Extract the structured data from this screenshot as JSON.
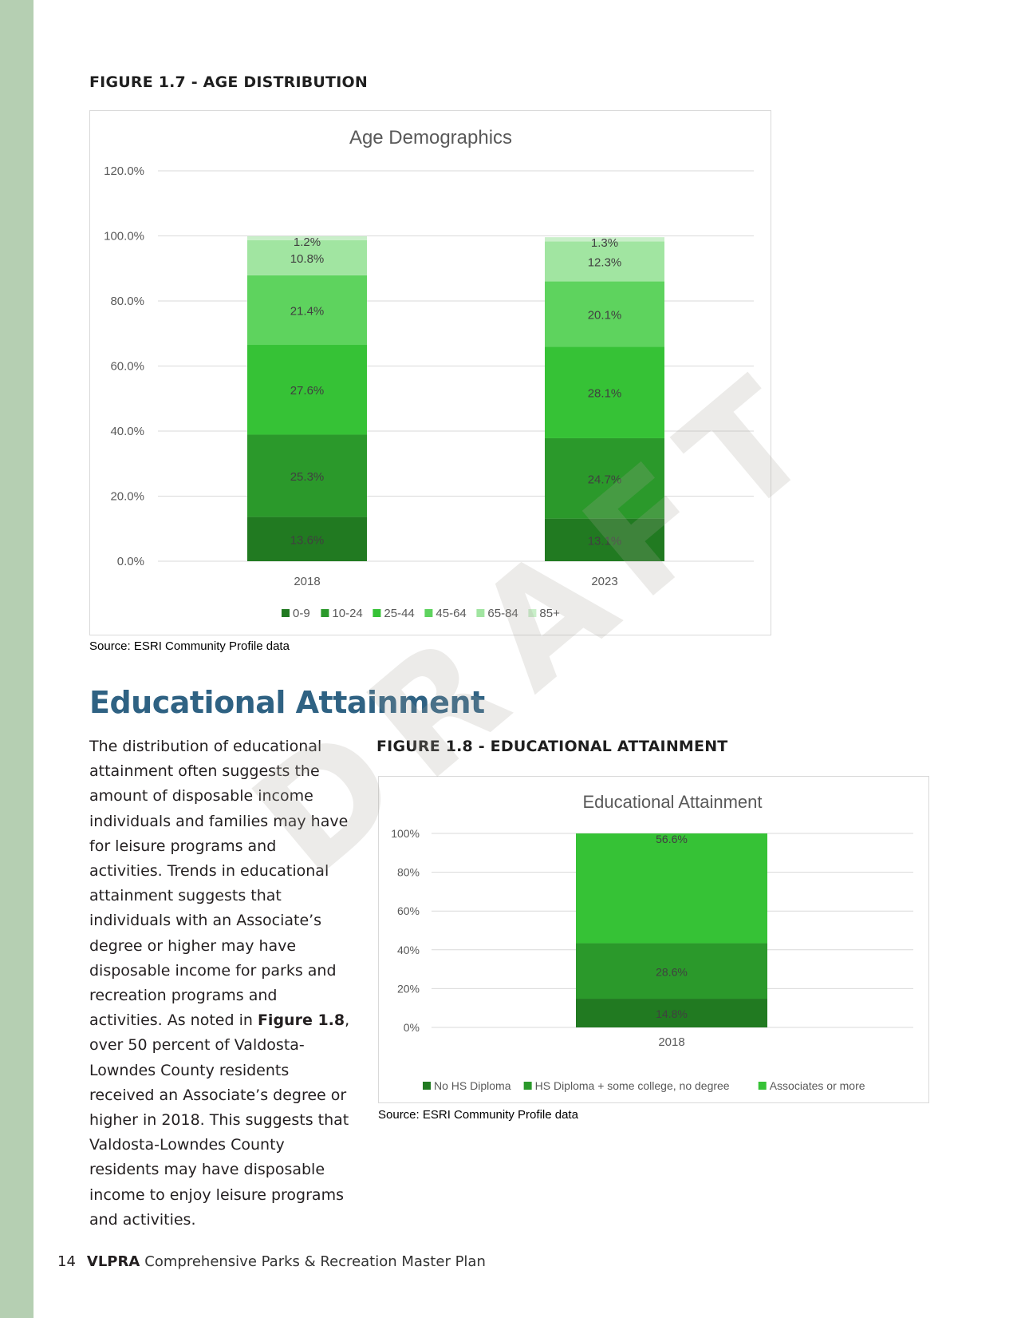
{
  "figure_1": {
    "heading": "FIGURE 1.7 - AGE DISTRIBUTION",
    "source": "Source: ESRI Community Profile data"
  },
  "section": {
    "title": "Educational Attainment",
    "body_pre": "The distribution of educational attainment often suggests the amount of disposable income individuals and families may have for leisure programs and activities. Trends in educational attainment suggests that individuals with an Associate’s degree or higher may have disposable income for parks and recreation programs and activities. As noted in ",
    "body_bold": "Figure 1.8",
    "body_post": ", over 50 percent of Valdosta-Lowndes County residents received an Associate’s degree or higher in 2018. This suggests that Valdosta-Lowndes County residents may have disposable income to enjoy leisure programs and activities."
  },
  "figure_2": {
    "heading": "FIGURE 1.8 - EDUCATIONAL ATTAINMENT",
    "source": "Source: ESRI Community Profile data"
  },
  "watermark": "DRAFT",
  "footer": {
    "page_number": "14",
    "org": "VLPRA",
    "doc_title": "Comprehensive Parks & Recreation Master Plan"
  },
  "chart_data": [
    {
      "type": "bar",
      "stacked": true,
      "title": "Age Demographics",
      "categories": [
        "2018",
        "2023"
      ],
      "series": [
        {
          "name": "0-9",
          "values": [
            13.6,
            13.1
          ],
          "labels": [
            "13.6%",
            "13.1%"
          ],
          "color": "#217a21"
        },
        {
          "name": "10-24",
          "values": [
            25.3,
            24.7
          ],
          "labels": [
            "25.3%",
            "24.7%"
          ],
          "color": "#2b992b"
        },
        {
          "name": "25-44",
          "values": [
            27.6,
            28.1
          ],
          "labels": [
            "27.6%",
            "28.1%"
          ],
          "color": "#36c236"
        },
        {
          "name": "45-64",
          "values": [
            21.4,
            20.1
          ],
          "labels": [
            "21.4%",
            "20.1%"
          ],
          "color": "#5ed35e"
        },
        {
          "name": "65-84",
          "values": [
            10.8,
            12.3
          ],
          "labels": [
            "10.8%",
            "12.3%"
          ],
          "color": "#a1e5a1"
        },
        {
          "name": "85+",
          "values": [
            1.2,
            1.3
          ],
          "labels": [
            "1.2%",
            "1.3%"
          ],
          "color": "#c9efc9"
        }
      ],
      "ylim": [
        0,
        120
      ],
      "yticks": [
        "0.0%",
        "20.0%",
        "40.0%",
        "60.0%",
        "80.0%",
        "100.0%",
        "120.0%"
      ],
      "grid": true,
      "legend": "bottom"
    },
    {
      "type": "bar",
      "stacked": true,
      "title": "Educational Attainment",
      "categories": [
        "2018"
      ],
      "series": [
        {
          "name": "No HS Diploma",
          "values": [
            14.8
          ],
          "labels": [
            "14.8%"
          ],
          "color": "#217a21"
        },
        {
          "name": "HS Diploma + some college, no degree",
          "values": [
            28.6
          ],
          "labels": [
            "28.6%"
          ],
          "color": "#2b992b"
        },
        {
          "name": "Associates or more",
          "values": [
            56.6
          ],
          "labels": [
            "56.6%"
          ],
          "color": "#36c236"
        }
      ],
      "ylim": [
        0,
        100
      ],
      "yticks": [
        "0%",
        "20%",
        "40%",
        "60%",
        "80%",
        "100%"
      ],
      "grid": true,
      "legend": "bottom"
    }
  ]
}
